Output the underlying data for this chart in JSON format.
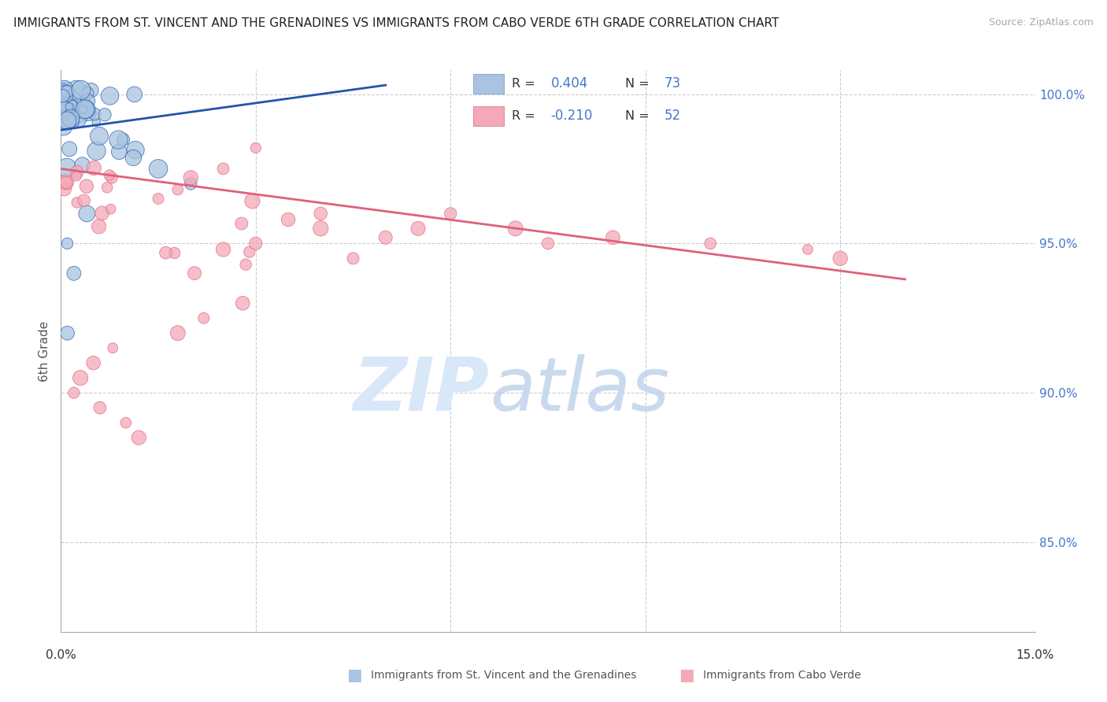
{
  "title": "IMMIGRANTS FROM ST. VINCENT AND THE GRENADINES VS IMMIGRANTS FROM CABO VERDE 6TH GRADE CORRELATION CHART",
  "source": "Source: ZipAtlas.com",
  "ylabel": "6th Grade",
  "blue_R": 0.404,
  "blue_N": 73,
  "pink_R": -0.21,
  "pink_N": 52,
  "blue_color": "#a8c4e0",
  "pink_color": "#f4a8b8",
  "blue_line_color": "#2255aa",
  "pink_line_color": "#e0607a",
  "legend_blue_face": "#a8c4e0",
  "legend_pink_face": "#f4a8b8",
  "watermark_zip": "ZIP",
  "watermark_atlas": "atlas",
  "ylim_min": 0.82,
  "ylim_max": 1.008,
  "xlim_min": 0.0,
  "xlim_max": 0.15,
  "ytick_vals": [
    0.85,
    0.9,
    0.95,
    1.0
  ],
  "ytick_labels": [
    "85.0%",
    "90.0%",
    "95.0%",
    "100.0%"
  ],
  "xtick_left_label": "0.0%",
  "xtick_right_label": "15.0%",
  "blue_line_x": [
    0.0,
    0.05
  ],
  "blue_line_y": [
    0.988,
    1.003
  ],
  "pink_line_x": [
    0.0,
    0.13
  ],
  "pink_line_y": [
    0.975,
    0.938
  ],
  "grid_color": "#cccccc",
  "title_fontsize": 11,
  "source_fontsize": 9
}
